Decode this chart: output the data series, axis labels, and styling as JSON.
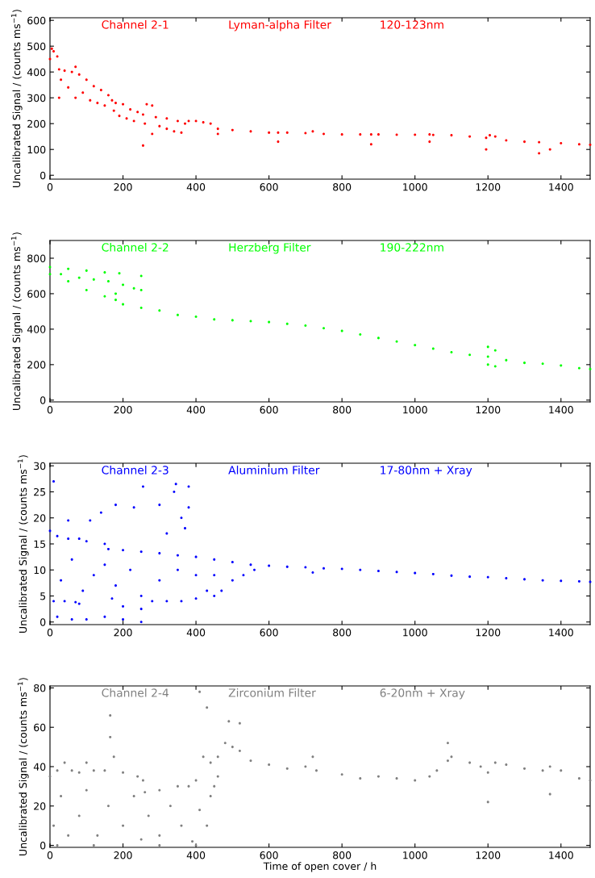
{
  "chart_data": [
    {
      "type": "scatter",
      "title": "Channel 2-1",
      "annotations": [
        "Lyman-alpha Filter",
        "120-123nm"
      ],
      "ylabel": "Uncalibrated Signal / (counts ms$^{−1}$)",
      "marker": "circle",
      "xlim": [
        0,
        1480
      ],
      "xticks": [
        0,
        200,
        400,
        600,
        800,
        1000,
        1200,
        1400
      ],
      "ylim": [
        -15,
        610
      ],
      "yticks": [
        0,
        100,
        200,
        300,
        400,
        500,
        600
      ],
      "series": [
        {
          "color": "#ff0000",
          "x": [
            0,
            5,
            10,
            20,
            25,
            40,
            60,
            70,
            80,
            100,
            120,
            140,
            160,
            170,
            180,
            200,
            220,
            240,
            255,
            265,
            280,
            290,
            320,
            350,
            370,
            380,
            400,
            420,
            440,
            460,
            500,
            550,
            600,
            625,
            650,
            700,
            720,
            750,
            800,
            850,
            880,
            900,
            950,
            1000,
            1040,
            1050,
            1100,
            1150,
            1195,
            1205,
            1220,
            1250,
            1300,
            1340,
            1400,
            1450,
            1480
          ],
          "values": [
            450,
            490,
            480,
            460,
            410,
            405,
            400,
            420,
            390,
            370,
            345,
            330,
            310,
            290,
            280,
            275,
            255,
            245,
            235,
            275,
            270,
            225,
            220,
            210,
            200,
            210,
            210,
            205,
            200,
            180,
            175,
            170,
            165,
            165,
            165,
            163,
            170,
            160,
            158,
            158,
            158,
            158,
            157,
            157,
            158,
            156,
            155,
            150,
            145,
            155,
            150,
            135,
            130,
            128,
            124,
            120,
            118
          ]
        },
        {
          "color": "#ff0000",
          "x": [
            880,
            1040,
            1195,
            1340,
            1370,
            255,
            25,
            460,
            625,
            30,
            50,
            70,
            90,
            110,
            130,
            150,
            175,
            190,
            210,
            230,
            260,
            300,
            320,
            340,
            360,
            280
          ],
          "values": [
            120,
            130,
            100,
            85,
            100,
            115,
            300,
            160,
            130,
            370,
            340,
            300,
            320,
            290,
            280,
            270,
            250,
            230,
            220,
            210,
            200,
            190,
            180,
            170,
            165,
            160
          ]
        }
      ]
    },
    {
      "type": "scatter",
      "title": "Channel 2-2",
      "annotations": [
        "Herzberg Filter",
        "190-222nm"
      ],
      "ylabel": "Uncalibrated Signal / (counts ms$^{−1}$)",
      "marker": "circle",
      "xlim": [
        0,
        1480
      ],
      "xticks": [
        0,
        200,
        400,
        600,
        800,
        1000,
        1200,
        1400
      ],
      "ylim": [
        -10,
        900
      ],
      "yticks": [
        0,
        200,
        400,
        600,
        800
      ],
      "series": [
        {
          "color": "#00ff00",
          "x": [
            0,
            50,
            100,
            150,
            180,
            200,
            250,
            300,
            350,
            400,
            450,
            500,
            550,
            600,
            650,
            700,
            750,
            800,
            850,
            900,
            950,
            1000,
            1050,
            1100,
            1150,
            1200,
            1250,
            1300,
            1350,
            1400,
            1450,
            1480
          ],
          "values": [
            710,
            670,
            620,
            585,
            565,
            540,
            520,
            505,
            480,
            470,
            455,
            450,
            445,
            440,
            430,
            420,
            405,
            390,
            370,
            350,
            330,
            310,
            290,
            270,
            255,
            245,
            225,
            210,
            205,
            195,
            180,
            175
          ]
        },
        {
          "color": "#00ff00",
          "x": [
            0,
            50,
            100,
            150,
            190,
            250,
            30,
            80,
            120,
            160,
            200,
            230,
            250,
            180,
            1200,
            1220,
            1200,
            1220
          ],
          "values": [
            750,
            740,
            730,
            720,
            715,
            700,
            710,
            690,
            680,
            670,
            650,
            630,
            620,
            600,
            300,
            280,
            200,
            190
          ]
        }
      ]
    },
    {
      "type": "scatter",
      "title": "Channel 2-3",
      "annotations": [
        "Aluminium Filter",
        "17-80nm + Xray"
      ],
      "ylabel": "Uncalibrated Signal / (counts ms$^{−1}$)",
      "marker": "circle",
      "xlim": [
        0,
        1480
      ],
      "xticks": [
        0,
        200,
        400,
        600,
        800,
        1000,
        1200,
        1400
      ],
      "ylim": [
        -0.5,
        30.5
      ],
      "yticks": [
        0,
        5,
        10,
        15,
        20,
        25,
        30
      ],
      "series": [
        {
          "color": "#0000ff",
          "x": [
            0,
            20,
            50,
            80,
            100,
            150,
            160,
            200,
            250,
            300,
            350,
            400,
            450,
            500,
            550,
            600,
            650,
            700,
            720,
            750,
            800,
            850,
            900,
            950,
            1000,
            1050,
            1100,
            1150,
            1200,
            1250,
            1300,
            1350,
            1400,
            1450,
            1480
          ],
          "values": [
            17.5,
            16.5,
            16,
            16,
            15.5,
            15,
            14,
            13.8,
            13.5,
            13.2,
            12.8,
            12.5,
            12,
            11.5,
            11,
            10.8,
            10.6,
            10.5,
            9.5,
            10.3,
            10.2,
            10,
            9.8,
            9.6,
            9.4,
            9.2,
            8.9,
            8.7,
            8.6,
            8.4,
            8.2,
            8.0,
            7.9,
            7.8,
            7.7
          ]
        },
        {
          "color": "#0000ff",
          "x": [
            10,
            40,
            70,
            80,
            170,
            200,
            250,
            20,
            60,
            100,
            150,
            200,
            250,
            30,
            60,
            90,
            120,
            150,
            180,
            220,
            250,
            280,
            320,
            360,
            400,
            430,
            450,
            470,
            500,
            530,
            560,
            300,
            350,
            400,
            450,
            10,
            50,
            110,
            140,
            180,
            230,
            255,
            300,
            340,
            345,
            360,
            380,
            380,
            320,
            370
          ],
          "values": [
            4,
            4,
            3.8,
            3.5,
            4.5,
            3,
            2.5,
            1,
            0.5,
            0.5,
            1,
            0.5,
            0,
            8,
            12,
            6,
            9,
            11,
            7,
            10,
            5,
            4,
            4,
            4,
            4.5,
            6,
            5,
            6,
            8,
            9,
            10,
            8,
            10,
            9,
            9,
            27,
            19.5,
            19.5,
            21,
            22.5,
            22,
            26,
            22.5,
            25,
            26.5,
            20,
            26,
            22,
            17,
            18
          ]
        }
      ]
    },
    {
      "type": "scatter",
      "title": "Channel 2-4",
      "annotations": [
        "Zirconium Filter",
        "6-20nm + Xray"
      ],
      "xlabel": "Time of open cover / h",
      "ylabel": "Uncalibrated Signal / (counts ms$^{−1}$)",
      "marker": "circle",
      "xlim": [
        0,
        1480
      ],
      "xticks": [
        0,
        200,
        400,
        600,
        800,
        1000,
        1200,
        1400
      ],
      "ylim": [
        -1,
        81
      ],
      "yticks": [
        0,
        20,
        40,
        60,
        80
      ],
      "series": [
        {
          "color": "#808080",
          "x": [
            0,
            20,
            40,
            60,
            80,
            100,
            120,
            150,
            165,
            175,
            200,
            240,
            255,
            260,
            300,
            350,
            380,
            400,
            420,
            440,
            460,
            480,
            500,
            520,
            550,
            600,
            650,
            700,
            720,
            730,
            800,
            850,
            900,
            950,
            1000,
            1040,
            1060,
            1090,
            1100,
            1150,
            1180,
            1200,
            1220,
            1250,
            1300,
            1350,
            1370,
            1400,
            1450,
            1480
          ],
          "values": [
            35,
            38,
            42,
            38,
            37,
            42,
            38,
            38,
            55,
            45,
            37,
            35,
            33,
            27,
            28,
            30,
            30,
            33,
            45,
            42,
            45,
            52,
            50,
            48,
            43,
            41,
            39,
            40,
            45,
            38,
            36,
            34,
            35,
            34,
            33,
            35,
            38,
            43,
            45,
            42,
            40,
            37,
            42,
            41,
            39,
            38,
            40,
            38,
            34,
            33
          ]
        },
        {
          "color": "#808080",
          "x": [
            165,
            410,
            430,
            490,
            520,
            1090,
            10,
            30,
            50,
            80,
            100,
            130,
            160,
            200,
            230,
            250,
            270,
            300,
            330,
            360,
            390,
            410,
            430,
            440,
            450,
            460,
            20,
            120,
            300,
            400,
            1200,
            1370
          ],
          "values": [
            66,
            78,
            70,
            63,
            62,
            52,
            10,
            25,
            5,
            15,
            28,
            5,
            20,
            10,
            25,
            3,
            15,
            5,
            20,
            10,
            2,
            18,
            10,
            25,
            30,
            35,
            0,
            0,
            0,
            0,
            22,
            26
          ]
        }
      ]
    }
  ]
}
